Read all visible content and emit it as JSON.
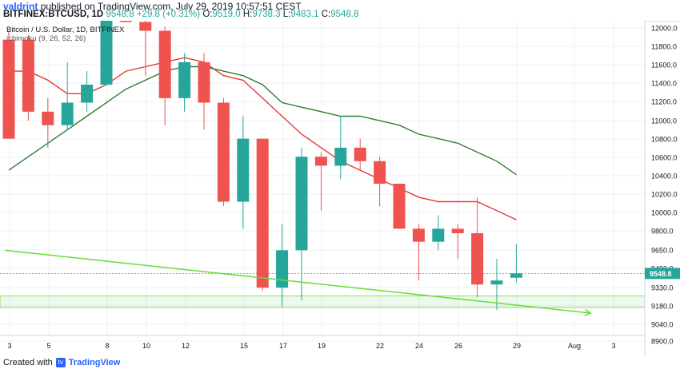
{
  "header": {
    "author": "valdrint",
    "published_text": "published on TradingView.com, July 29, 2019 10:57:51 CEST",
    "symbol": "BITFINEX:BTCUSD, 1D",
    "price": "9548.8",
    "change": "+29.8 (+0.31%)",
    "ohlc": {
      "o_label": "O:",
      "o": "9519.0",
      "h_label": "H:",
      "h": "9738.3",
      "l_label": "L:",
      "l": "9483.1",
      "c_label": "C:",
      "c": "9548.8"
    }
  },
  "legend": {
    "title": "Bitcoin / U.S. Dollar, 1D, BITFINEX",
    "indicator": "ichimoku (9, 26, 52, 26)"
  },
  "footer": {
    "created_with": "Created with",
    "brand": "TradingView"
  },
  "colors": {
    "up": "#26a69a",
    "down": "#ef5350",
    "tenkan": "#e53935",
    "kijun": "#2e7d32",
    "support_zone": "#9be09b",
    "trendline": "#66dd33"
  },
  "chart_data": {
    "type": "candlestick",
    "title": "Bitcoin / U.S. Dollar, 1D, BITFINEX",
    "x_tick_labels": [
      "3",
      "5",
      "8",
      "10",
      "12",
      "15",
      "17",
      "19",
      "22",
      "24",
      "26",
      "29",
      "Aug",
      "3"
    ],
    "y_tick_labels": [
      "12000.0",
      "11800.0",
      "11600.0",
      "11400.0",
      "11200.0",
      "11000.0",
      "10800.0",
      "10600.0",
      "10400.0",
      "10200.0",
      "10000.0",
      "9800.0",
      "9650.0",
      "9490.0",
      "9330.0",
      "9180.0",
      "9040.0",
      "8900.0"
    ],
    "ylim": [
      8800,
      12200
    ],
    "last_price_label": "9548.8",
    "candles": [
      {
        "date": "Jul 3",
        "open": 11950,
        "high": 12050,
        "low": 10850,
        "close": 10850
      },
      {
        "date": "Jul 4",
        "open": 11950,
        "high": 12000,
        "low": 11050,
        "close": 11150
      },
      {
        "date": "Jul 5",
        "open": 11150,
        "high": 11300,
        "low": 10750,
        "close": 11000
      },
      {
        "date": "Jul 6",
        "open": 11000,
        "high": 11700,
        "low": 10950,
        "close": 11250
      },
      {
        "date": "Jul 7",
        "open": 11250,
        "high": 11600,
        "low": 11150,
        "close": 11450
      },
      {
        "date": "Jul 8",
        "open": 11450,
        "high": 12500,
        "low": 11450,
        "close": 12250
      },
      {
        "date": "Jul 9",
        "open": 12350,
        "high": 12600,
        "low": 12150,
        "close": 12150
      },
      {
        "date": "Jul 10",
        "open": 12150,
        "high": 12350,
        "low": 11550,
        "close": 12050
      },
      {
        "date": "Jul 11",
        "open": 12050,
        "high": 12100,
        "low": 11000,
        "close": 11300
      },
      {
        "date": "Jul 12",
        "open": 11300,
        "high": 11800,
        "low": 11150,
        "close": 11700
      },
      {
        "date": "Jul 13",
        "open": 11700,
        "high": 11800,
        "low": 10950,
        "close": 11250
      },
      {
        "date": "Jul 14",
        "open": 11250,
        "high": 11300,
        "low": 10100,
        "close": 10150
      },
      {
        "date": "Jul 15",
        "open": 10150,
        "high": 11100,
        "low": 9850,
        "close": 10850
      },
      {
        "date": "Jul 16",
        "open": 10850,
        "high": 10850,
        "low": 9350,
        "close": 9400
      },
      {
        "date": "Jul 17",
        "open": 9400,
        "high": 9900,
        "low": 9100,
        "close": 9700
      },
      {
        "date": "Jul 18",
        "open": 9700,
        "high": 10750,
        "low": 9200,
        "close": 10650
      },
      {
        "date": "Jul 19",
        "open": 10650,
        "high": 10700,
        "low": 10050,
        "close": 10550
      },
      {
        "date": "Jul 20",
        "open": 10550,
        "high": 11100,
        "low": 10400,
        "close": 10750
      },
      {
        "date": "Jul 21",
        "open": 10750,
        "high": 10850,
        "low": 10500,
        "close": 10600
      },
      {
        "date": "Jul 22",
        "open": 10600,
        "high": 10650,
        "low": 10100,
        "close": 10350
      },
      {
        "date": "Jul 23",
        "open": 10350,
        "high": 10350,
        "low": 9850,
        "close": 9850
      },
      {
        "date": "Jul 24",
        "open": 9850,
        "high": 9900,
        "low": 9500,
        "close": 9750
      },
      {
        "date": "Jul 25",
        "open": 9750,
        "high": 10000,
        "low": 9700,
        "close": 9850
      },
      {
        "date": "Jul 26",
        "open": 9850,
        "high": 9900,
        "low": 9650,
        "close": 9800
      },
      {
        "date": "Jul 27",
        "open": 9800,
        "high": 10200,
        "low": 9250,
        "close": 9450
      },
      {
        "date": "Jul 28",
        "open": 9450,
        "high": 9650,
        "low": 9050,
        "close": 9500
      },
      {
        "date": "Jul 29",
        "open": 9519,
        "high": 9738.3,
        "low": 9483.1,
        "close": 9548.8
      }
    ],
    "series": [
      {
        "type": "line",
        "color": "#e53935",
        "points": [
          [
            0,
            11600
          ],
          [
            1,
            11600
          ],
          [
            2,
            11500
          ],
          [
            3,
            11350
          ],
          [
            4,
            11350
          ],
          [
            5,
            11450
          ],
          [
            6,
            11600
          ],
          [
            7,
            11650
          ],
          [
            8,
            11700
          ],
          [
            9,
            11750
          ],
          [
            10,
            11700
          ],
          [
            11,
            11550
          ],
          [
            12,
            11500
          ],
          [
            13,
            11300
          ],
          [
            14,
            11100
          ],
          [
            15,
            10900
          ],
          [
            16,
            10750
          ],
          [
            17,
            10600
          ],
          [
            18,
            10500
          ],
          [
            19,
            10400
          ],
          [
            20,
            10300
          ],
          [
            21,
            10200
          ],
          [
            22,
            10150
          ],
          [
            23,
            10150
          ],
          [
            24,
            10150
          ],
          [
            25,
            10050
          ],
          [
            26,
            9950
          ]
        ]
      },
      {
        "type": "line",
        "color": "#2e7d32",
        "points": [
          [
            0,
            10500
          ],
          [
            1,
            10650
          ],
          [
            2,
            10800
          ],
          [
            3,
            10950
          ],
          [
            4,
            11100
          ],
          [
            5,
            11250
          ],
          [
            6,
            11400
          ],
          [
            7,
            11500
          ],
          [
            8,
            11600
          ],
          [
            9,
            11650
          ],
          [
            10,
            11650
          ],
          [
            11,
            11600
          ],
          [
            12,
            11550
          ],
          [
            13,
            11450
          ],
          [
            14,
            11250
          ],
          [
            15,
            11200
          ],
          [
            16,
            11150
          ],
          [
            17,
            11100
          ],
          [
            18,
            11100
          ],
          [
            19,
            11050
          ],
          [
            20,
            11000
          ],
          [
            21,
            10900
          ],
          [
            22,
            10850
          ],
          [
            23,
            10800
          ],
          [
            24,
            10700
          ],
          [
            25,
            10600
          ],
          [
            26,
            10450
          ]
        ]
      }
    ],
    "annotations": {
      "support_zone": [
        9090,
        9270
      ],
      "last_price_line": 9548.8,
      "trendline": {
        "from": [
          -0.2,
          9700
        ],
        "to": [
          29.8,
          9020
        ],
        "arrow": true
      }
    }
  }
}
